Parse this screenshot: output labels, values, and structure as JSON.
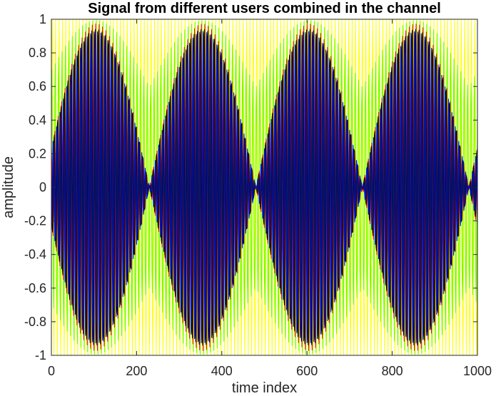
{
  "chart_data": {
    "type": "line",
    "title": "Signal from different users combined in the channel",
    "xlabel": "time index",
    "ylabel": "amplitude",
    "xlim": [
      0,
      1000
    ],
    "ylim": [
      -1,
      1
    ],
    "xticks": [
      0,
      200,
      400,
      600,
      800,
      1000
    ],
    "xtick_labels": [
      "0",
      "200",
      "400",
      "600",
      "800",
      "1000"
    ],
    "yticks": [
      -1,
      -0.8,
      -0.6,
      -0.4,
      -0.2,
      0,
      0.2,
      0.4,
      0.6,
      0.8,
      1
    ],
    "ytick_labels": [
      "-1",
      "-0.8",
      "-0.6",
      "-0.4",
      "-0.2",
      "0",
      "0.2",
      "0.4",
      "0.6",
      "0.8",
      "1"
    ],
    "grid": false,
    "background": "#ffffff",
    "series": [
      {
        "color": "#ffff00",
        "carrier_period": 8,
        "envelope": "constant",
        "amplitude": 1.0
      },
      {
        "color": "#66ff00",
        "carrier_period": 8,
        "envelope_period": 250,
        "amplitude_min": 0.6,
        "amplitude_max": 1.0
      },
      {
        "color": "#ff0000",
        "carrier_period": 8,
        "envelope_period": 250,
        "amplitude_min": 0.0,
        "amplitude_max": 1.0
      },
      {
        "color": "#000000",
        "carrier_period": 8,
        "envelope_period": 250,
        "amplitude_min": 0.0,
        "amplitude_max": 1.0
      },
      {
        "color": "#003300",
        "carrier_period": 8,
        "envelope_period": 250,
        "amplitude_min": 0.0,
        "amplitude_max": 0.9
      },
      {
        "color": "#0000ff",
        "carrier_period": 8,
        "envelope_period": 250,
        "amplitude_min": 0.0,
        "amplitude_max": 0.95
      }
    ]
  }
}
